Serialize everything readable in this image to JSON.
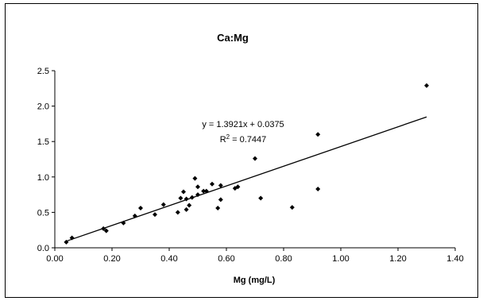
{
  "chart_data": {
    "type": "scatter",
    "title": "Ca:Mg",
    "xlabel": "Mg (mg/L)",
    "ylabel": "",
    "xlim": [
      0,
      1.4
    ],
    "ylim": [
      0,
      2.5
    ],
    "x_ticks": [
      "0.00",
      "0.20",
      "0.40",
      "0.60",
      "0.80",
      "1.00",
      "1.20",
      "1.40"
    ],
    "y_ticks": [
      "0.0",
      "0.5",
      "1.0",
      "1.5",
      "2.0",
      "2.5"
    ],
    "grid": false,
    "legend": "none",
    "points": [
      {
        "x": 0.04,
        "y": 0.08
      },
      {
        "x": 0.06,
        "y": 0.14
      },
      {
        "x": 0.17,
        "y": 0.27
      },
      {
        "x": 0.18,
        "y": 0.24
      },
      {
        "x": 0.24,
        "y": 0.35
      },
      {
        "x": 0.28,
        "y": 0.45
      },
      {
        "x": 0.3,
        "y": 0.56
      },
      {
        "x": 0.35,
        "y": 0.47
      },
      {
        "x": 0.38,
        "y": 0.61
      },
      {
        "x": 0.43,
        "y": 0.5
      },
      {
        "x": 0.44,
        "y": 0.7
      },
      {
        "x": 0.45,
        "y": 0.79
      },
      {
        "x": 0.46,
        "y": 0.54
      },
      {
        "x": 0.46,
        "y": 0.69
      },
      {
        "x": 0.47,
        "y": 0.6
      },
      {
        "x": 0.48,
        "y": 0.71
      },
      {
        "x": 0.49,
        "y": 0.98
      },
      {
        "x": 0.5,
        "y": 0.86
      },
      {
        "x": 0.5,
        "y": 0.75
      },
      {
        "x": 0.52,
        "y": 0.8
      },
      {
        "x": 0.53,
        "y": 0.8
      },
      {
        "x": 0.55,
        "y": 0.9
      },
      {
        "x": 0.57,
        "y": 0.56
      },
      {
        "x": 0.58,
        "y": 0.88
      },
      {
        "x": 0.58,
        "y": 0.68
      },
      {
        "x": 0.63,
        "y": 0.84
      },
      {
        "x": 0.64,
        "y": 0.86
      },
      {
        "x": 0.7,
        "y": 1.26
      },
      {
        "x": 0.72,
        "y": 0.7
      },
      {
        "x": 0.83,
        "y": 0.57
      },
      {
        "x": 0.92,
        "y": 1.6
      },
      {
        "x": 0.92,
        "y": 0.83
      },
      {
        "x": 1.3,
        "y": 2.29
      }
    ],
    "trendline": {
      "slope": 1.3921,
      "intercept": 0.0375,
      "x_range": [
        0.04,
        1.3
      ],
      "equation": "y = 1.3921x + 0.0375",
      "r2_label": "R",
      "r2_sup": "2",
      "r2_value": " = 0.7447"
    },
    "colors": {
      "marker": "#000000",
      "trendline": "#000000",
      "axis": "#000000"
    }
  }
}
